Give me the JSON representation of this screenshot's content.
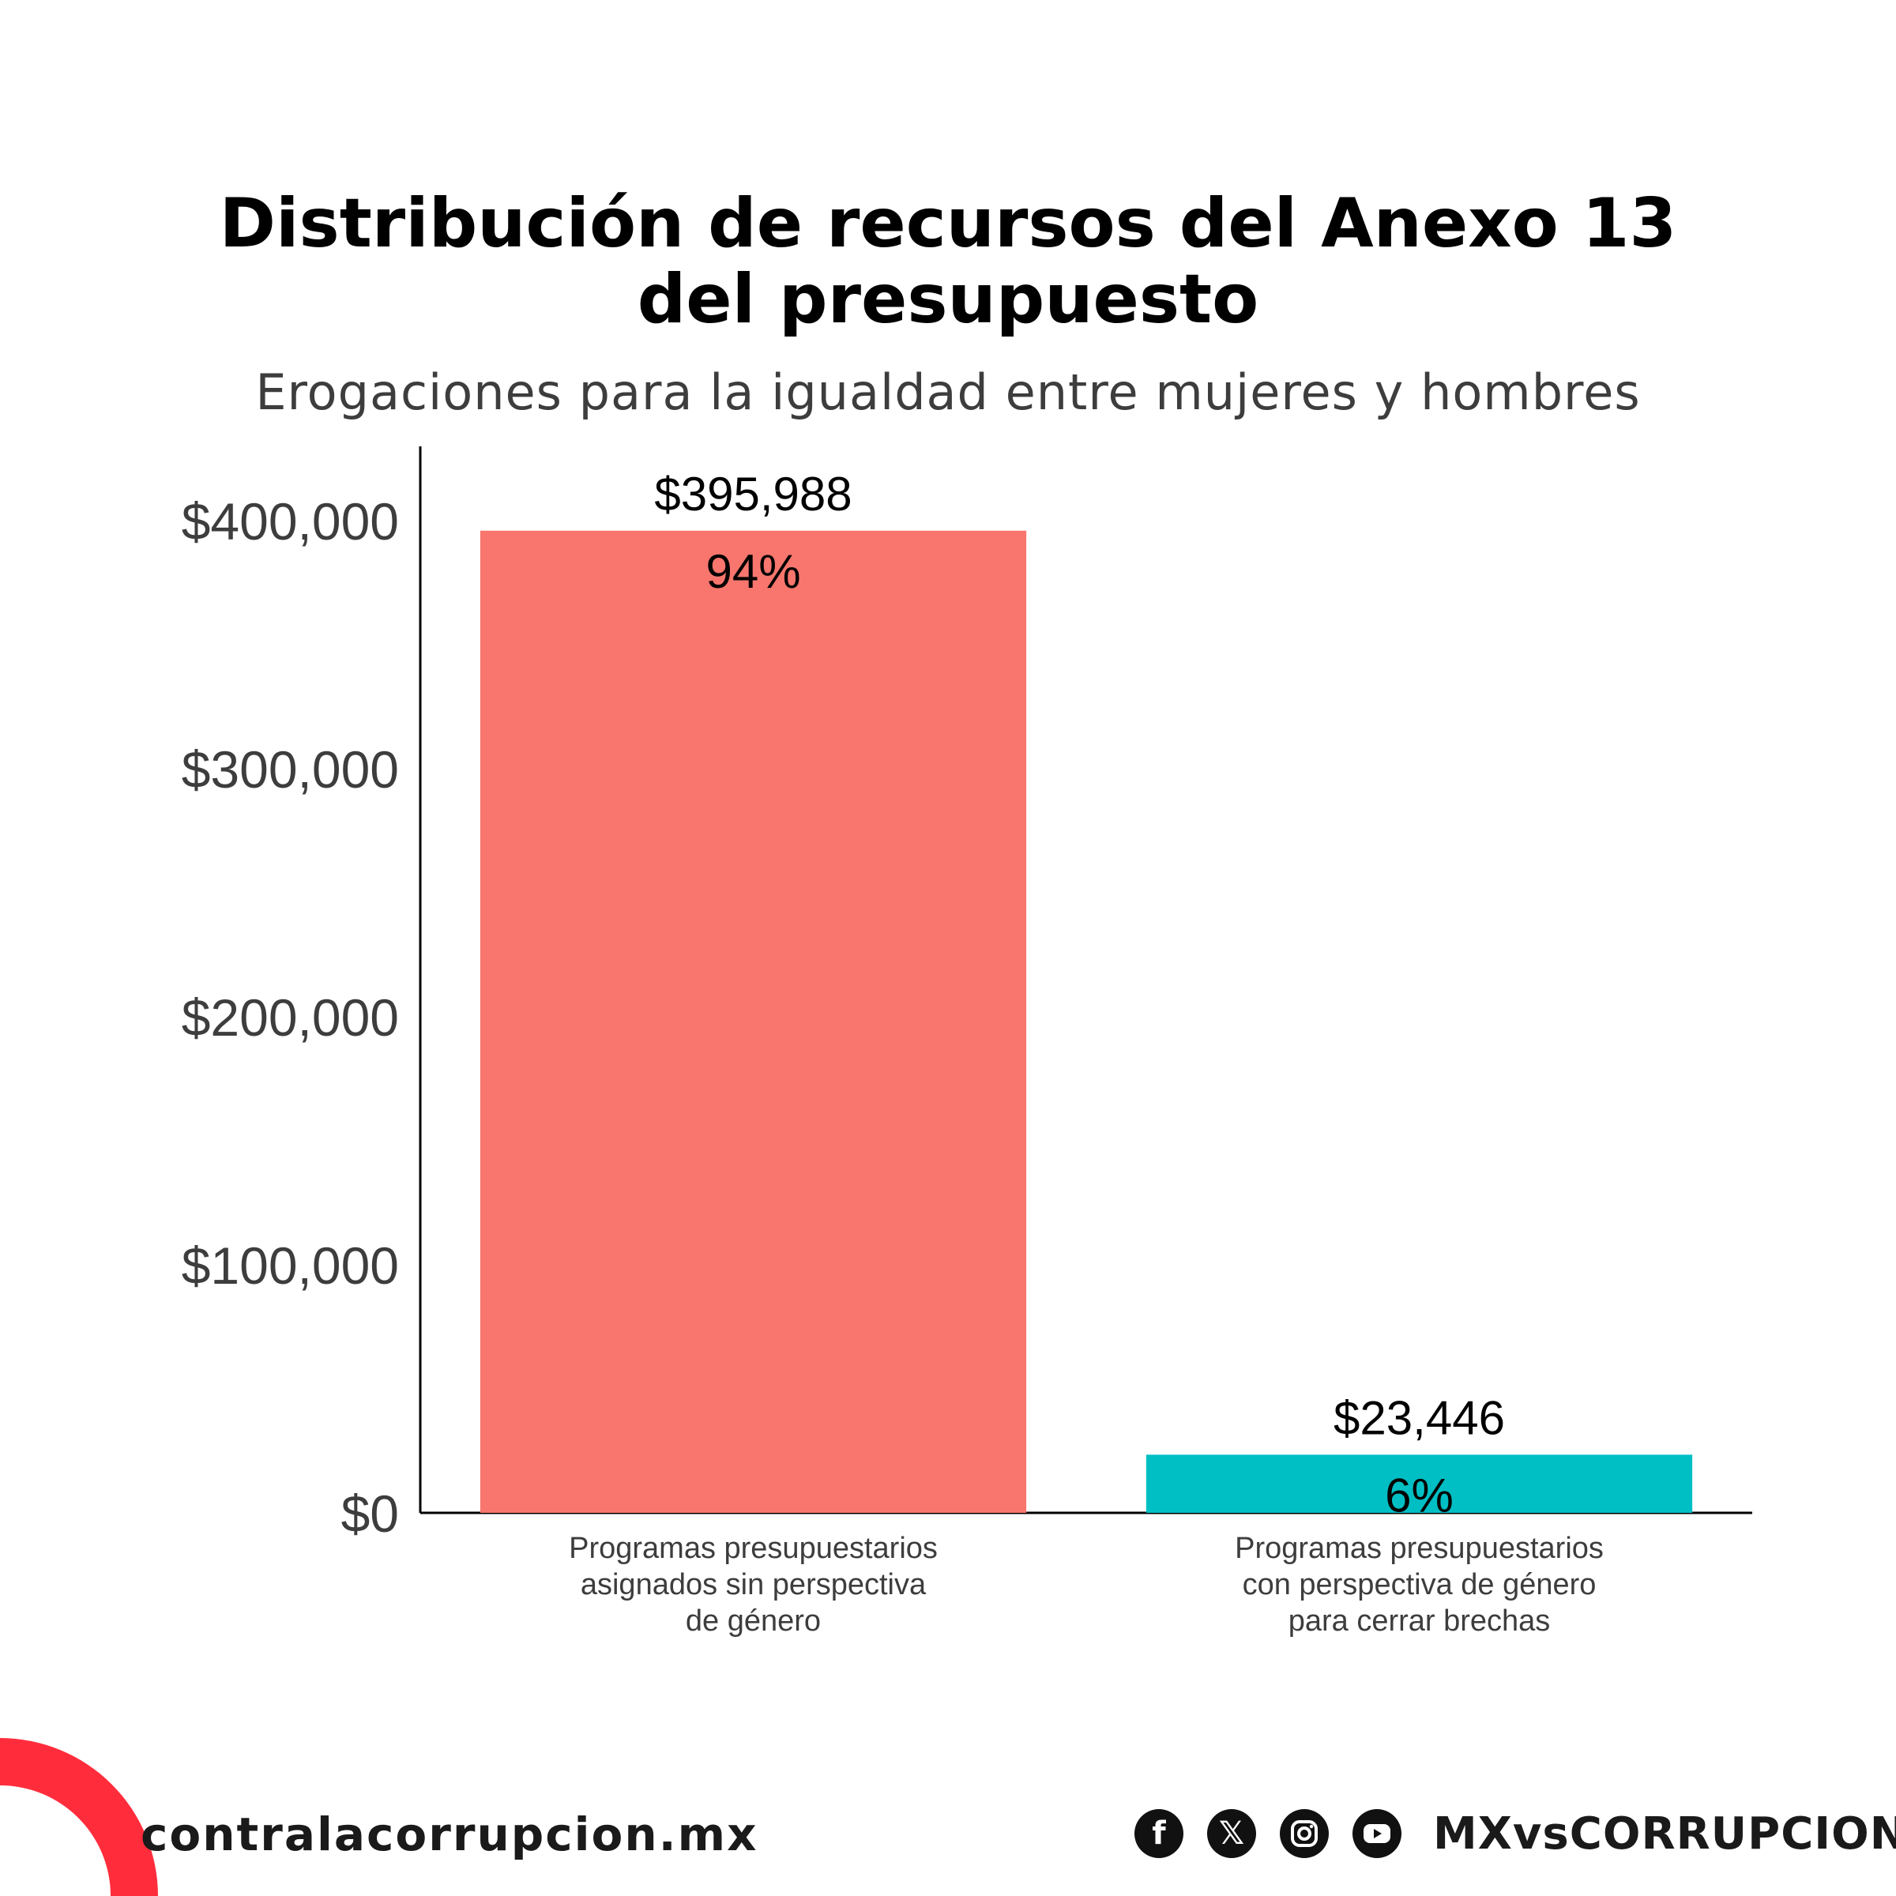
{
  "chart_data": {
    "type": "bar",
    "title": "Distribución de recursos del Anexo 13 del presupuesto",
    "title_lines": [
      "Distribución de recursos del Anexo 13",
      "del presupuesto"
    ],
    "subtitle": "Erogaciones para la igualdad entre mujeres y hombres",
    "categories": [
      "Programas presupuestarios asignados sin perspectiva de género",
      "Programas presupuestarios con perspectiva de género para cerrar brechas"
    ],
    "category_lines": [
      [
        "Programas presupuestarios",
        "asignados sin perspectiva",
        "de género"
      ],
      [
        "Programas presupuestarios",
        "con perspectiva de género",
        "para cerrar brechas"
      ]
    ],
    "values": [
      395988,
      23446
    ],
    "value_labels": [
      "$395,988",
      "$23,446"
    ],
    "percent_labels": [
      "94%",
      "6%"
    ],
    "colors": [
      "#f8766d",
      "#00bfc4"
    ],
    "ylim": [
      0,
      430000
    ],
    "yticks": [
      0,
      100000,
      200000,
      300000,
      400000
    ],
    "ytick_labels": [
      "$0",
      "$100,000",
      "$200,000",
      "$300,000",
      "$400,000"
    ],
    "xlabel": "",
    "ylabel": "",
    "grid": false,
    "legend": "none"
  },
  "footer": {
    "site": "contralacorrupcion.mx",
    "social_icons": [
      "facebook-icon",
      "x-icon",
      "instagram-icon",
      "youtube-icon"
    ],
    "handle": "MXvsCORRUPCION",
    "accent": "#ff2d3c"
  }
}
